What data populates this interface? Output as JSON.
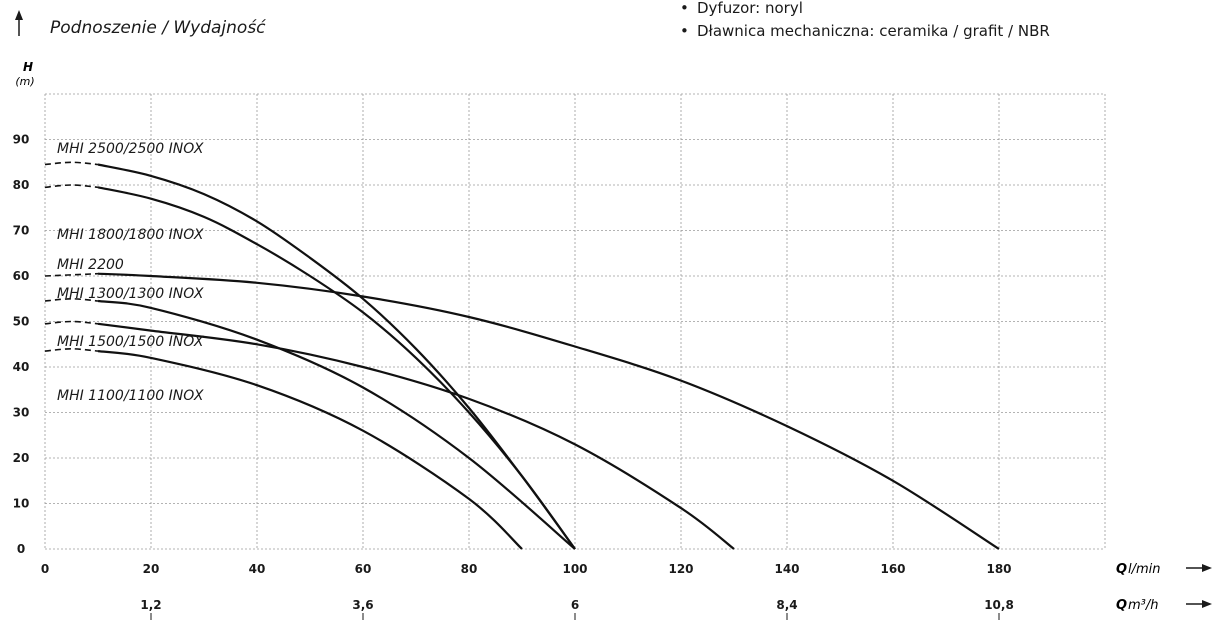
{
  "header": {
    "title": "Podnoszenie / Wydajność",
    "specs": [
      "Dyfuzor: noryl",
      "Dławnica mechaniczna: ceramika / grafit / NBR"
    ]
  },
  "chart_data": {
    "type": "line",
    "y_axis": {
      "label": "H",
      "unit": "(m)",
      "range": [
        0,
        100
      ],
      "ticks": [
        0,
        10,
        20,
        30,
        40,
        50,
        60,
        70,
        80,
        90
      ]
    },
    "x_axis": {
      "label": "Q",
      "unit": "l/min",
      "range": [
        0,
        200
      ],
      "ticks": [
        0,
        20,
        40,
        60,
        80,
        100,
        120,
        140,
        160,
        180
      ]
    },
    "x_axis2": {
      "label": "Q",
      "unit": "m³/h",
      "ticks": [
        "1,2",
        "3,6",
        "6",
        "8,4",
        "10,8"
      ],
      "tick_q": [
        20,
        60,
        100,
        140,
        180
      ]
    },
    "grid": true,
    "series": [
      {
        "name": "MHI 2500/2500 INOX",
        "x": [
          0,
          5,
          10,
          20,
          30,
          40,
          50,
          60,
          70,
          80,
          90,
          100
        ],
        "y": [
          84.5,
          85,
          84.5,
          82,
          78,
          72,
          64,
          55,
          44,
          31,
          16,
          0
        ]
      },
      {
        "name": "MHI 1800/1800 INOX",
        "x": [
          0,
          5,
          10,
          20,
          30,
          40,
          50,
          60,
          70,
          80,
          90,
          100
        ],
        "y": [
          79.5,
          80,
          79.5,
          77,
          73,
          67,
          60,
          52,
          42,
          30,
          16,
          0
        ]
      },
      {
        "name": "MHI 2200",
        "x": [
          0,
          10,
          20,
          40,
          60,
          80,
          100,
          120,
          140,
          160,
          180
        ],
        "y": [
          60,
          60.5,
          60,
          58.5,
          55.5,
          51,
          44.5,
          37,
          27,
          15,
          0
        ]
      },
      {
        "name": "MHI 1300/1300 INOX",
        "x": [
          0,
          5,
          10,
          20,
          40,
          60,
          80,
          100
        ],
        "y": [
          54.5,
          55,
          54.5,
          53,
          46,
          35.5,
          20,
          0
        ]
      },
      {
        "name": "MHI 1500/1500 INOX",
        "x": [
          0,
          5,
          10,
          20,
          40,
          60,
          80,
          100,
          120,
          130
        ],
        "y": [
          49.5,
          50,
          49.5,
          48,
          45,
          40,
          33,
          23,
          9,
          0
        ]
      },
      {
        "name": "MHI 1100/1100 INOX",
        "x": [
          0,
          5,
          10,
          20,
          40,
          60,
          80,
          90
        ],
        "y": [
          43.5,
          44,
          43.5,
          42,
          36,
          26,
          11,
          0
        ]
      }
    ]
  }
}
